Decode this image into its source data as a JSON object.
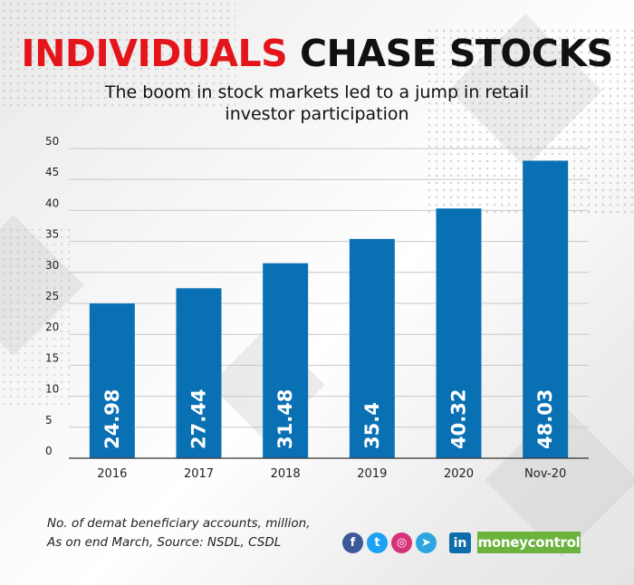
{
  "title": {
    "highlight": "INDIVIDUALS",
    "rest": "CHASE STOCKS"
  },
  "subtitle": "The boom in stock markets led to a jump in retail investor participation",
  "chart_data": {
    "type": "bar",
    "categories": [
      "2016",
      "2017",
      "2018",
      "2019",
      "2020",
      "Nov-20"
    ],
    "values": [
      24.98,
      27.44,
      31.48,
      35.4,
      40.32,
      48.03
    ],
    "data_labels": [
      "24.98",
      "27.44",
      "31.48",
      "35.4",
      "40.32",
      "48.03"
    ],
    "yticks": [
      0,
      5,
      10,
      15,
      20,
      25,
      30,
      35,
      40,
      45,
      50
    ],
    "ylim": [
      0,
      50
    ],
    "grid": true,
    "bar_color": "#0a70b4"
  },
  "footnote": {
    "line1": "No. of demat beneficiary accounts, million,",
    "line2": "As on end March, Source: NSDL, CSDL"
  },
  "social": {
    "facebook": {
      "glyph": "f",
      "color": "#3b5998"
    },
    "twitter": {
      "glyph": "t",
      "color": "#1da1f2"
    },
    "instagram": {
      "glyph": "◎",
      "color": "#d6327a"
    },
    "telegram": {
      "glyph": "➤",
      "color": "#2ca5e0"
    },
    "linkedin": {
      "glyph": "in",
      "color": "#0e6caa"
    }
  },
  "brand": "moneycontrol"
}
